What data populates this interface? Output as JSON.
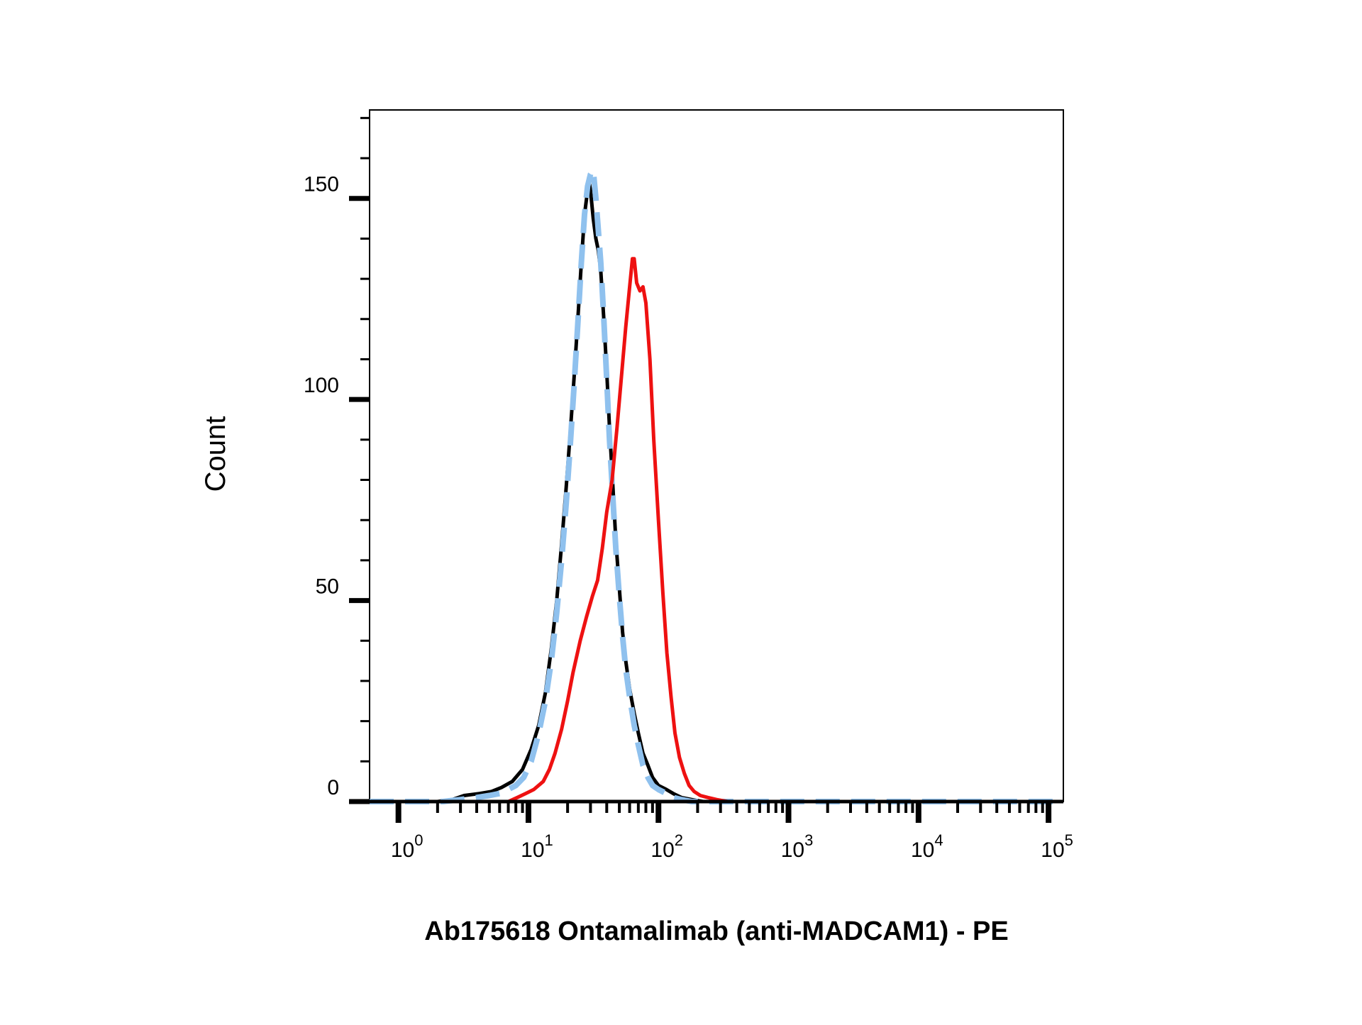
{
  "chart_data": {
    "type": "line",
    "title": "",
    "xlabel": "Ab175618 Ontamalimab (anti-MADCAM1) - PE",
    "ylabel": "Count",
    "x_scale": "log",
    "xlim": [
      0.6,
      130000
    ],
    "ylim": [
      0,
      172
    ],
    "y_ticks": [
      0,
      50,
      100,
      150
    ],
    "y_tick_labels": [
      "0",
      "50",
      "100",
      "150"
    ],
    "x_ticks": [
      1,
      10,
      100,
      1000,
      10000,
      100000
    ],
    "x_tick_labels": [
      {
        "base": "10",
        "exp": "0"
      },
      {
        "base": "10",
        "exp": "1"
      },
      {
        "base": "10",
        "exp": "2"
      },
      {
        "base": "10",
        "exp": "3"
      },
      {
        "base": "10",
        "exp": "4"
      },
      {
        "base": "10",
        "exp": "5"
      }
    ],
    "grid": false,
    "legend": "none",
    "series": [
      {
        "color": "#000000",
        "style": "solid",
        "points": [
          [
            0.6,
            0
          ],
          [
            2.0,
            0
          ],
          [
            2.6,
            0.5
          ],
          [
            3.2,
            1.5
          ],
          [
            4.2,
            2
          ],
          [
            5.2,
            2.5
          ],
          [
            6.2,
            3.5
          ],
          [
            7.5,
            5
          ],
          [
            9,
            8
          ],
          [
            10.5,
            13
          ],
          [
            12,
            19
          ],
          [
            13.5,
            27
          ],
          [
            15,
            38
          ],
          [
            16.5,
            50
          ],
          [
            18,
            64
          ],
          [
            19.5,
            78
          ],
          [
            21,
            92
          ],
          [
            22.5,
            106
          ],
          [
            24,
            120
          ],
          [
            25.5,
            134
          ],
          [
            27,
            146
          ],
          [
            28,
            150
          ],
          [
            29,
            155
          ],
          [
            30,
            152
          ],
          [
            31.5,
            145
          ],
          [
            33,
            140
          ],
          [
            34.5,
            137
          ],
          [
            36,
            132
          ],
          [
            38,
            120
          ],
          [
            40,
            107
          ],
          [
            42,
            93
          ],
          [
            44.5,
            79
          ],
          [
            47,
            65
          ],
          [
            50,
            53
          ],
          [
            53,
            42
          ],
          [
            56,
            35
          ],
          [
            60,
            28
          ],
          [
            65,
            22
          ],
          [
            70,
            17
          ],
          [
            76,
            12
          ],
          [
            83,
            9
          ],
          [
            90,
            6
          ],
          [
            100,
            4
          ],
          [
            115,
            3
          ],
          [
            130,
            2
          ],
          [
            150,
            1
          ],
          [
            180,
            0.5
          ],
          [
            220,
            0
          ],
          [
            130000,
            0
          ]
        ]
      },
      {
        "color": "#8fc1ee",
        "style": "dashed",
        "points": [
          [
            0.6,
            0
          ],
          [
            2.2,
            0
          ],
          [
            3.0,
            0.5
          ],
          [
            4.0,
            1
          ],
          [
            5.0,
            1.5
          ],
          [
            6.0,
            2
          ],
          [
            7.0,
            3
          ],
          [
            8.0,
            4
          ],
          [
            9.2,
            6
          ],
          [
            10.5,
            10
          ],
          [
            12,
            17
          ],
          [
            13.5,
            25
          ],
          [
            15,
            35
          ],
          [
            16.5,
            47
          ],
          [
            18,
            60
          ],
          [
            19.5,
            74
          ],
          [
            21,
            89
          ],
          [
            22.5,
            104
          ],
          [
            24,
            119
          ],
          [
            25.5,
            134
          ],
          [
            27,
            146
          ],
          [
            28.5,
            153
          ],
          [
            30,
            156
          ],
          [
            31.5,
            157
          ],
          [
            33,
            150
          ],
          [
            34.5,
            142
          ],
          [
            36,
            134
          ],
          [
            38,
            120
          ],
          [
            40,
            105
          ],
          [
            42,
            90
          ],
          [
            44.5,
            76
          ],
          [
            47,
            63
          ],
          [
            50,
            51
          ],
          [
            53,
            41
          ],
          [
            56,
            33
          ],
          [
            60,
            26
          ],
          [
            65,
            19
          ],
          [
            70,
            14
          ],
          [
            76,
            9
          ],
          [
            83,
            6
          ],
          [
            90,
            4
          ],
          [
            100,
            3
          ],
          [
            115,
            2
          ],
          [
            130,
            1
          ],
          [
            150,
            0.5
          ],
          [
            180,
            0
          ],
          [
            130000,
            0
          ]
        ]
      },
      {
        "color": "#ee1111",
        "style": "solid",
        "points": [
          [
            0.6,
            0
          ],
          [
            7.0,
            0
          ],
          [
            8.2,
            1
          ],
          [
            9.5,
            2
          ],
          [
            11,
            3
          ],
          [
            13,
            5
          ],
          [
            14.5,
            8
          ],
          [
            16,
            12
          ],
          [
            18,
            18
          ],
          [
            20,
            25
          ],
          [
            22,
            32
          ],
          [
            25,
            40
          ],
          [
            28,
            46
          ],
          [
            31,
            51
          ],
          [
            34,
            55
          ],
          [
            37,
            63
          ],
          [
            40,
            72
          ],
          [
            44,
            80
          ],
          [
            48,
            93
          ],
          [
            52,
            106
          ],
          [
            56,
            118
          ],
          [
            60,
            128
          ],
          [
            63,
            135
          ],
          [
            65,
            135
          ],
          [
            68,
            129
          ],
          [
            72,
            127
          ],
          [
            76,
            128
          ],
          [
            80,
            124
          ],
          [
            86,
            110
          ],
          [
            92,
            90
          ],
          [
            100,
            70
          ],
          [
            108,
            52
          ],
          [
            116,
            37
          ],
          [
            125,
            26
          ],
          [
            134,
            17
          ],
          [
            145,
            11
          ],
          [
            158,
            7
          ],
          [
            172,
            4
          ],
          [
            188,
            2.5
          ],
          [
            210,
            1.5
          ],
          [
            240,
            1
          ],
          [
            280,
            0.5
          ],
          [
            340,
            0
          ],
          [
            130000,
            0
          ]
        ]
      }
    ]
  }
}
